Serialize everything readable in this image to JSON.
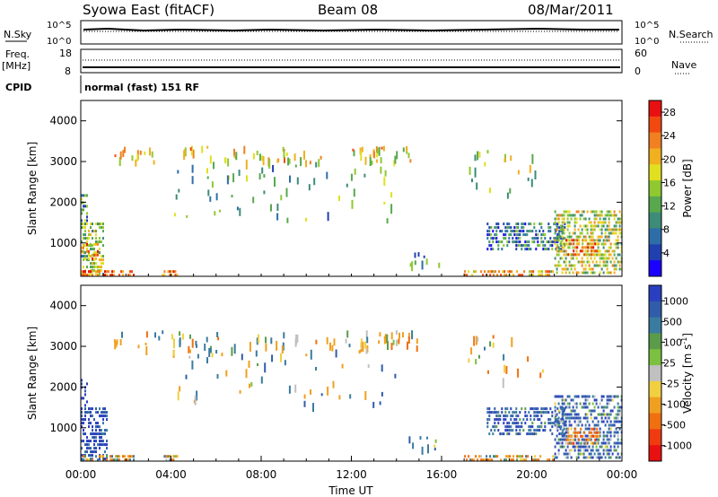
{
  "header": {
    "title": "Syowa East (fitACF)",
    "beam": "Beam 08",
    "date": "08/Mar/2011"
  },
  "status_panels": {
    "nsky_label": "N.Sky",
    "nsky_ticks": [
      "10^5",
      "10^0"
    ],
    "nsearch_label": "N.Search",
    "nsearch_ticks": [
      "10^5",
      "10^0"
    ],
    "freq_label": "Freq.",
    "freq_unit": "[MHz]",
    "freq_ticks": [
      "18",
      "8"
    ],
    "nave_label": "Nave",
    "nave_ticks": [
      "60",
      "0"
    ],
    "cpid_label": "CPID",
    "cpid_text": "normal (fast) 151 RF"
  },
  "colors": {
    "power_scale": [
      "#1a00ff",
      "#2040b0",
      "#2e6ea8",
      "#3c8c78",
      "#58a84e",
      "#90c830",
      "#e0e020",
      "#f0b020",
      "#f08020",
      "#f04a10",
      "#e81010"
    ],
    "velocity_scale": [
      "#2a3fbf",
      "#305caa",
      "#3a7ba0",
      "#5a9c4a",
      "#7cc040",
      "#c0c0c0",
      "#f0d040",
      "#f0a020",
      "#f07010",
      "#f03a10",
      "#e81010"
    ]
  },
  "chart_data": [
    {
      "type": "heatmap",
      "panel": "power",
      "xlabel": "",
      "ylabel": "Slant Range [km]",
      "xlim": [
        0,
        24
      ],
      "ylim": [
        180,
        4500
      ],
      "x_ticks": [],
      "y_ticks": [
        "1000",
        "2000",
        "3000",
        "4000"
      ],
      "colorbar_label": "Power [dB]",
      "colorbar_ticks": [
        "4",
        "8",
        "12",
        "16",
        "20",
        "24",
        "28"
      ],
      "colorbar_range": [
        0,
        30
      ],
      "regions": [
        {
          "x": [
            0.0,
            0.3
          ],
          "y": [
            1500,
            2200
          ],
          "value": 10
        },
        {
          "x": [
            0.0,
            1.0
          ],
          "y": [
            180,
            1500
          ],
          "value": 14
        },
        {
          "x": [
            0.0,
            0.8
          ],
          "y": [
            600,
            1000
          ],
          "value": 22
        },
        {
          "x": [
            0.0,
            2.4
          ],
          "y": [
            180,
            330
          ],
          "value": 26
        },
        {
          "x": [
            3.6,
            4.3
          ],
          "y": [
            180,
            330
          ],
          "value": 24
        },
        {
          "x": [
            17.0,
            21.0
          ],
          "y": [
            180,
            330
          ],
          "value": 20
        },
        {
          "x": [
            18.0,
            21.5
          ],
          "y": [
            800,
            1500
          ],
          "value": 8
        },
        {
          "x": [
            21.0,
            24.0
          ],
          "y": [
            180,
            1800
          ],
          "value": 16
        },
        {
          "x": [
            21.5,
            23.0
          ],
          "y": [
            700,
            1100
          ],
          "value": 22
        }
      ],
      "sparse_regions": [
        {
          "x": [
            1.4,
            15.0
          ],
          "y": [
            3000,
            3400
          ],
          "value": 18
        },
        {
          "x": [
            4.0,
            14.0
          ],
          "y": [
            1600,
            3000
          ],
          "value": 12
        },
        {
          "x": [
            14.5,
            16.0
          ],
          "y": [
            500,
            800
          ],
          "value": 10
        },
        {
          "x": [
            17.0,
            20.5
          ],
          "y": [
            2200,
            3300
          ],
          "value": 14
        }
      ]
    },
    {
      "type": "heatmap",
      "panel": "velocity",
      "xlabel": "Time UT",
      "ylabel": "Slant Range [km]",
      "xlim": [
        0,
        24
      ],
      "ylim": [
        180,
        4500
      ],
      "x_ticks": [
        "00:00",
        "04:00",
        "08:00",
        "12:00",
        "16:00",
        "20:00",
        "00:00"
      ],
      "y_ticks": [
        "1000",
        "2000",
        "3000",
        "4000"
      ],
      "colorbar_label": "Velocity [m s^-1]",
      "colorbar_ticks": [
        "1000",
        "500",
        "100",
        "25",
        "-25",
        "-100",
        "-500",
        "-1000"
      ],
      "regions": [
        {
          "x": [
            0.0,
            0.3
          ],
          "y": [
            1500,
            2200
          ],
          "value": 600
        },
        {
          "x": [
            0.0,
            1.2
          ],
          "y": [
            180,
            1500
          ],
          "value": 500
        },
        {
          "x": [
            0.0,
            2.4
          ],
          "y": [
            180,
            330
          ],
          "value": -100
        },
        {
          "x": [
            3.6,
            4.3
          ],
          "y": [
            180,
            330
          ],
          "value": -150
        },
        {
          "x": [
            17.0,
            21.0
          ],
          "y": [
            180,
            330
          ],
          "value": -80
        },
        {
          "x": [
            18.0,
            21.5
          ],
          "y": [
            800,
            1500
          ],
          "value": 400
        },
        {
          "x": [
            21.0,
            24.0
          ],
          "y": [
            180,
            1800
          ],
          "value": 300
        },
        {
          "x": [
            21.5,
            23.0
          ],
          "y": [
            600,
            1000
          ],
          "value": -200
        }
      ],
      "sparse_regions": [
        {
          "x": [
            1.4,
            15.0
          ],
          "y": [
            3000,
            3400
          ],
          "value": -50
        },
        {
          "x": [
            4.0,
            14.0
          ],
          "y": [
            1600,
            3000
          ],
          "value": 50
        },
        {
          "x": [
            14.5,
            16.0
          ],
          "y": [
            500,
            800
          ],
          "value": 80
        },
        {
          "x": [
            17.0,
            20.5
          ],
          "y": [
            2200,
            3300
          ],
          "value": -100
        }
      ]
    }
  ]
}
